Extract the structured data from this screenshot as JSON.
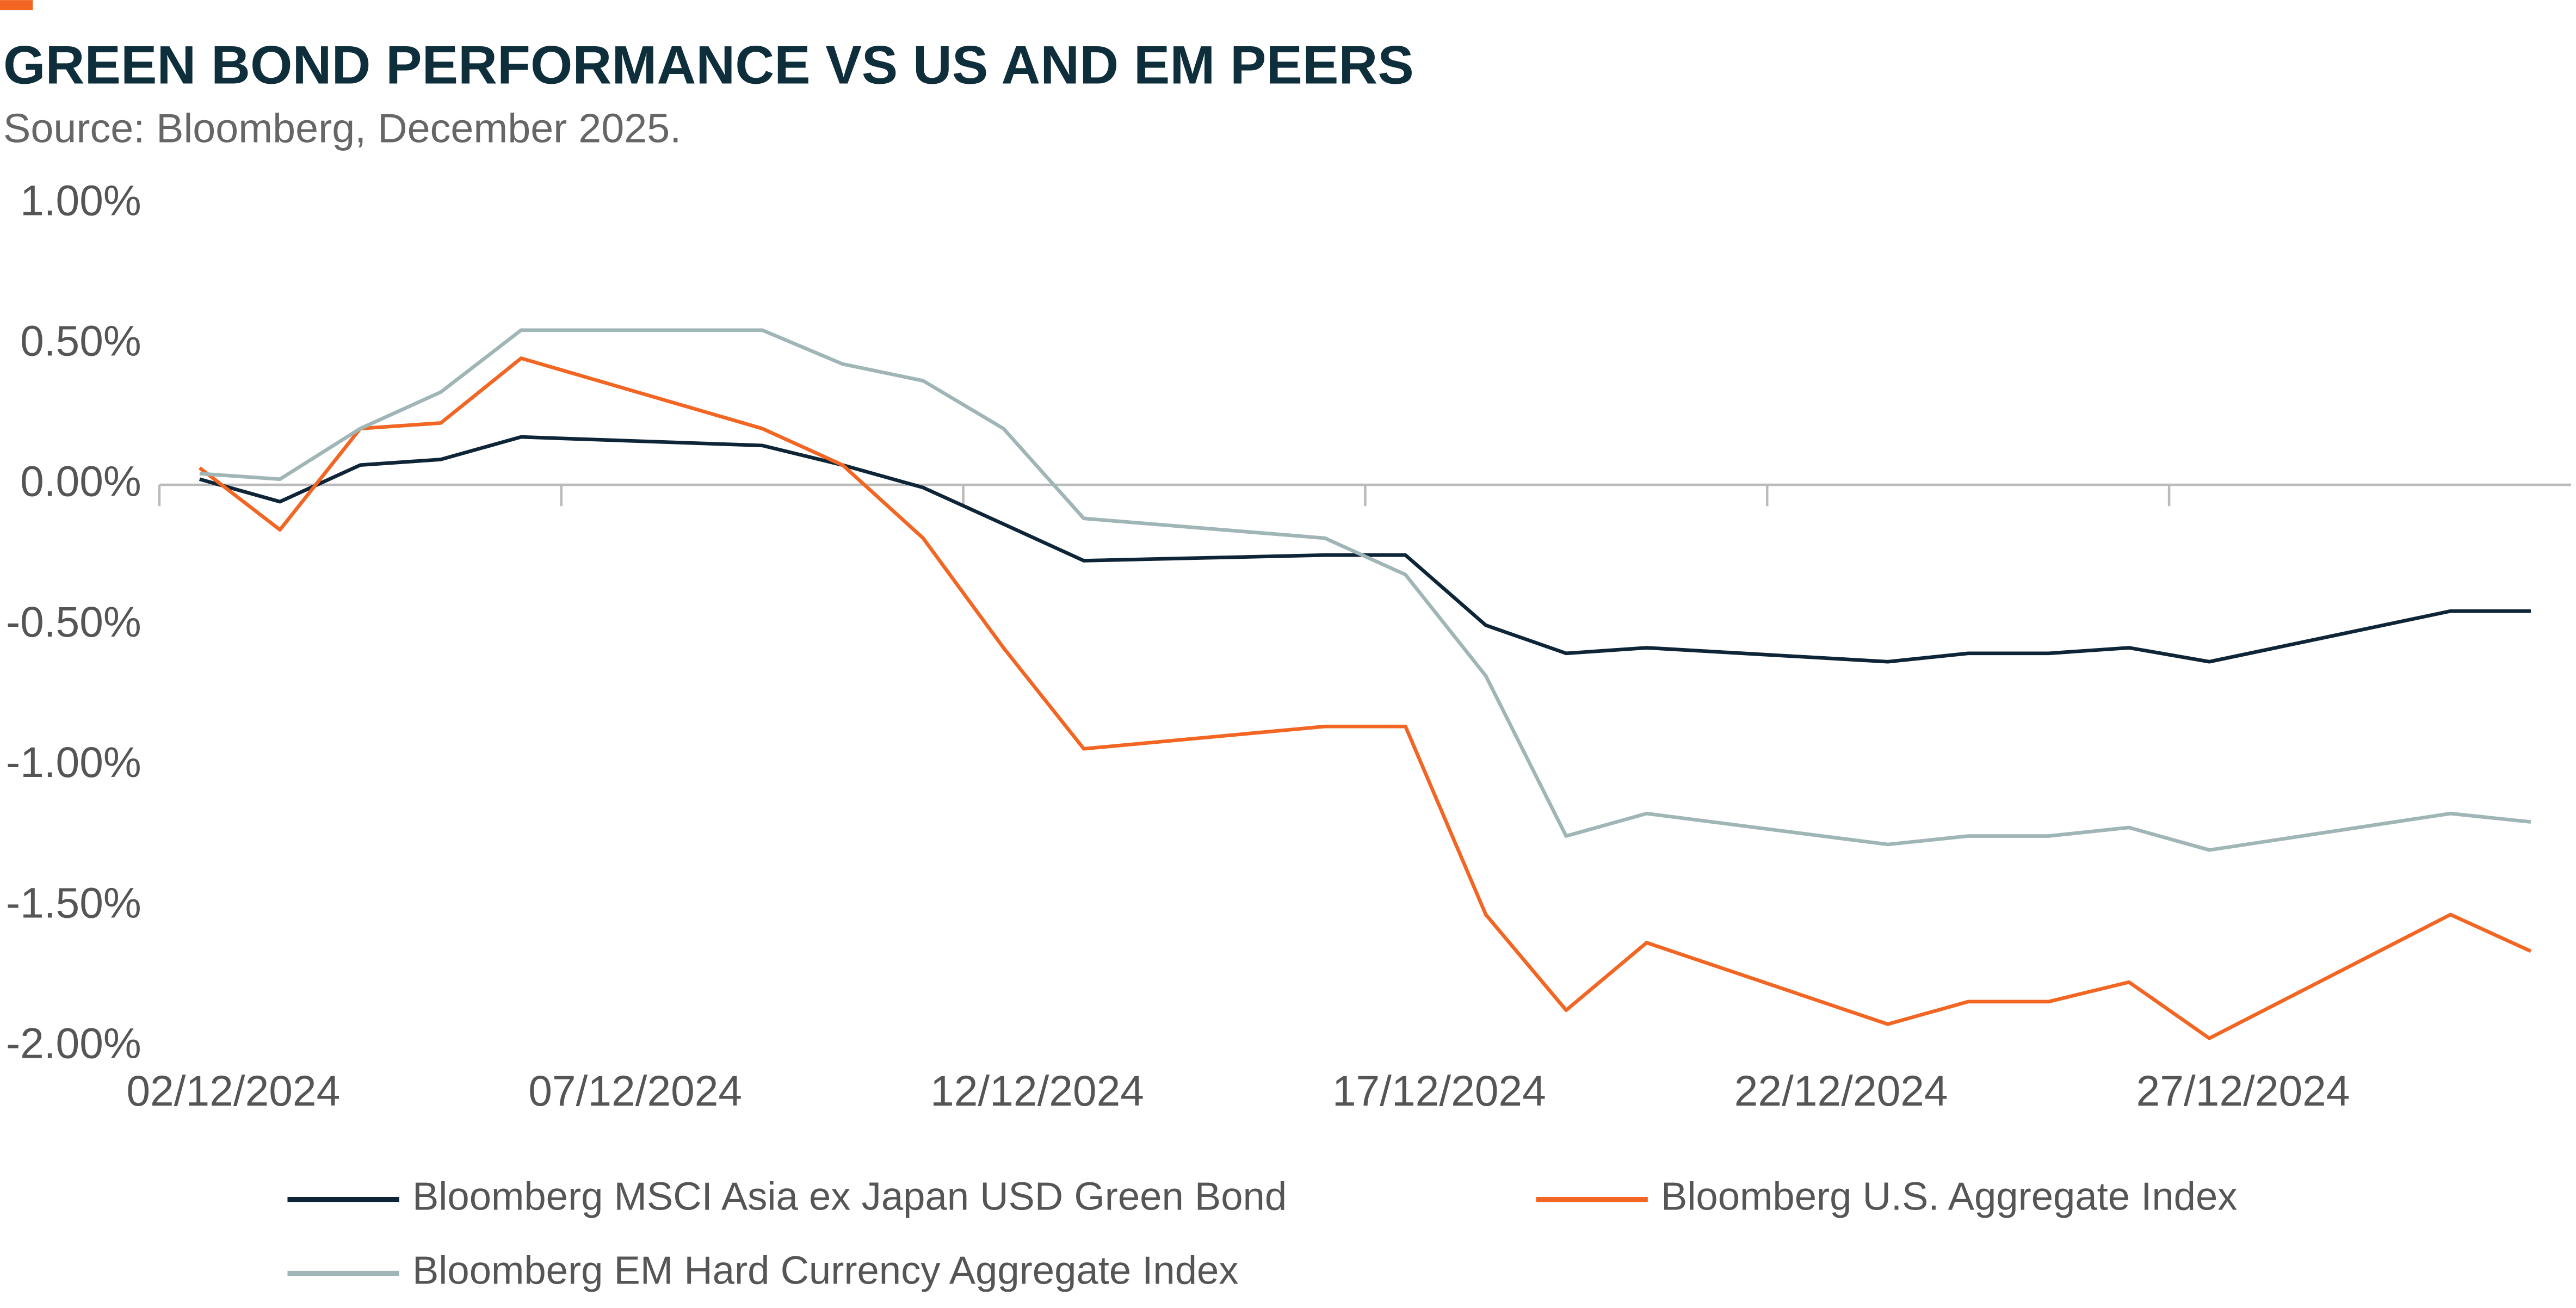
{
  "chart_data": {
    "type": "line",
    "title": "GREEN BOND PERFORMANCE VS US AND EM PEERS",
    "subtitle": "Source: Bloomberg, December 2025.",
    "x": [
      "02/12/2024",
      "03/12/2024",
      "04/12/2024",
      "05/12/2024",
      "06/12/2024",
      "09/12/2024",
      "10/12/2024",
      "11/12/2024",
      "12/12/2024",
      "13/12/2024",
      "16/12/2024",
      "17/12/2024",
      "18/12/2024",
      "19/12/2024",
      "20/12/2024",
      "23/12/2024",
      "24/12/2024",
      "25/12/2024",
      "26/12/2024",
      "27/12/2024",
      "30/12/2024",
      "31/12/2024"
    ],
    "series": [
      {
        "name": "Bloomberg MSCI Asia ex Japan USD Green Bond",
        "color": "#0d2537",
        "values": [
          0.02,
          -0.06,
          0.07,
          0.09,
          0.17,
          0.14,
          0.07,
          -0.01,
          -0.14,
          -0.27,
          -0.25,
          -0.25,
          -0.5,
          -0.6,
          -0.58,
          -0.63,
          -0.6,
          -0.6,
          -0.58,
          -0.63,
          -0.45,
          -0.45
        ]
      },
      {
        "name": "Bloomberg U.S. Aggregate Index",
        "color": "#f26522",
        "values": [
          0.06,
          -0.16,
          0.2,
          0.22,
          0.45,
          0.2,
          0.07,
          -0.19,
          -0.58,
          -0.94,
          -0.86,
          -0.86,
          -1.53,
          -1.87,
          -1.63,
          -1.92,
          -1.84,
          -1.84,
          -1.77,
          -1.97,
          -1.53,
          -1.66
        ]
      },
      {
        "name": "Bloomberg EM Hard Currency Aggregate Index",
        "color": "#9fb5b6",
        "values": [
          0.04,
          0.02,
          0.2,
          0.33,
          0.55,
          0.55,
          0.43,
          0.37,
          0.2,
          -0.12,
          -0.19,
          -0.32,
          -0.68,
          -1.25,
          -1.17,
          -1.28,
          -1.25,
          -1.25,
          -1.22,
          -1.3,
          -1.17,
          -1.2
        ]
      }
    ],
    "ylim": [
      -2,
      1
    ],
    "yticks": [
      {
        "value": 1,
        "label": "1.00%"
      },
      {
        "value": 0.5,
        "label": "0.50%"
      },
      {
        "value": 0,
        "label": "0.00%"
      },
      {
        "value": -0.5,
        "label": "-0.50%"
      },
      {
        "value": -1,
        "label": "-1.00%"
      },
      {
        "value": -1.5,
        "label": "-1.50%"
      },
      {
        "value": -2,
        "label": "-2.00%"
      }
    ],
    "xticks": [
      "02/12/2024",
      "07/12/2024",
      "12/12/2024",
      "17/12/2024",
      "22/12/2024",
      "27/12/2024"
    ],
    "legend": "bottom"
  }
}
